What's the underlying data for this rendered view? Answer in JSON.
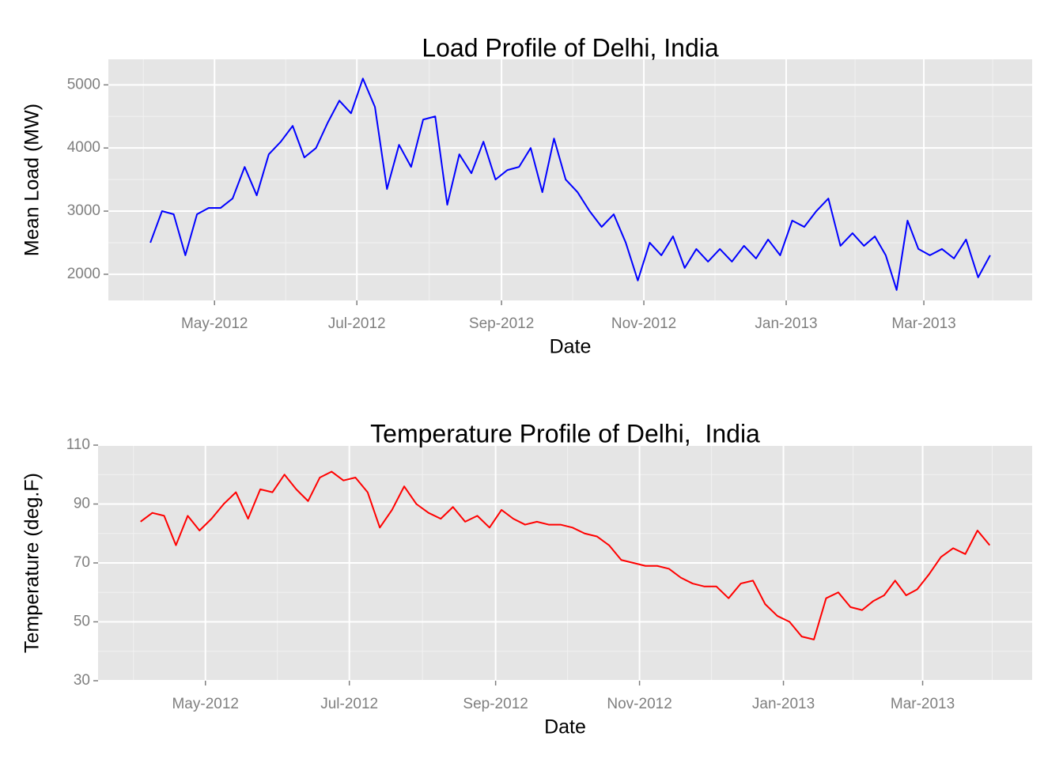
{
  "chart_data": [
    {
      "type": "line",
      "title": "Load Profile of Delhi, India",
      "x_label": "Date",
      "y_label": "Mean Load (MW)",
      "x": [
        "Apr-2012",
        "Apr-2012",
        "Apr-2012",
        "Apr-2012",
        "Apr-2012",
        "Apr-2012",
        "May-2012",
        "May-2012",
        "May-2012",
        "May-2012",
        "May-2012",
        "May-2012",
        "Jun-2012",
        "Jun-2012",
        "Jun-2012",
        "Jun-2012",
        "Jun-2012",
        "Jun-2012",
        "Jul-2012",
        "Jul-2012",
        "Jul-2012",
        "Jul-2012",
        "Jul-2012",
        "Jul-2012",
        "Aug-2012",
        "Aug-2012",
        "Aug-2012",
        "Aug-2012",
        "Aug-2012",
        "Aug-2012",
        "Sep-2012",
        "Sep-2012",
        "Sep-2012",
        "Sep-2012",
        "Sep-2012",
        "Sep-2012",
        "Oct-2012",
        "Oct-2012",
        "Oct-2012",
        "Oct-2012",
        "Oct-2012",
        "Oct-2012",
        "Nov-2012",
        "Nov-2012",
        "Nov-2012",
        "Nov-2012",
        "Nov-2012",
        "Nov-2012",
        "Dec-2012",
        "Dec-2012",
        "Dec-2012",
        "Dec-2012",
        "Dec-2012",
        "Dec-2012",
        "Jan-2013",
        "Jan-2013",
        "Jan-2013",
        "Jan-2013",
        "Jan-2013",
        "Jan-2013",
        "Feb-2013",
        "Feb-2013",
        "Feb-2013",
        "Feb-2013",
        "Feb-2013",
        "Feb-2013",
        "Mar-2013",
        "Mar-2013",
        "Mar-2013",
        "Mar-2013",
        "Mar-2013",
        "Mar-2013"
      ],
      "series": [
        {
          "color": "#0000ff",
          "values": [
            2500,
            3000,
            2950,
            2300,
            2950,
            3050,
            3050,
            3200,
            3700,
            3250,
            3900,
            4100,
            4350,
            3850,
            4000,
            4400,
            4750,
            4550,
            5100,
            4650,
            3350,
            4050,
            3700,
            4450,
            4500,
            3100,
            3900,
            3600,
            4100,
            3500,
            3650,
            3700,
            4000,
            3300,
            4150,
            3500,
            3300,
            3000,
            2750,
            2950,
            2500,
            1900,
            2500,
            2300,
            2600,
            2100,
            2400,
            2200,
            2400,
            2200,
            2450,
            2250,
            2550,
            2300,
            2850,
            2750,
            3000,
            3200,
            2450,
            2650,
            2450,
            2600,
            2300,
            1750,
            2850,
            2400,
            2300,
            2400,
            2250,
            2550,
            1950,
            2300
          ]
        }
      ],
      "xticks": [
        "May-2012",
        "Jul-2012",
        "Sep-2012",
        "Nov-2012",
        "Jan-2013",
        "Mar-2013"
      ],
      "ylim": [
        1585,
        5405
      ],
      "yticks": [
        2000,
        3000,
        4000,
        5000
      ],
      "grid": true
    },
    {
      "type": "line",
      "title": "Temperature Profile of Delhi,  India",
      "x_label": "Date",
      "y_label": "Temperature (deg.F)",
      "x": [
        "Apr-2012",
        "Apr-2012",
        "Apr-2012",
        "Apr-2012",
        "Apr-2012",
        "Apr-2012",
        "May-2012",
        "May-2012",
        "May-2012",
        "May-2012",
        "May-2012",
        "May-2012",
        "Jun-2012",
        "Jun-2012",
        "Jun-2012",
        "Jun-2012",
        "Jun-2012",
        "Jun-2012",
        "Jul-2012",
        "Jul-2012",
        "Jul-2012",
        "Jul-2012",
        "Jul-2012",
        "Jul-2012",
        "Aug-2012",
        "Aug-2012",
        "Aug-2012",
        "Aug-2012",
        "Aug-2012",
        "Aug-2012",
        "Sep-2012",
        "Sep-2012",
        "Sep-2012",
        "Sep-2012",
        "Sep-2012",
        "Sep-2012",
        "Oct-2012",
        "Oct-2012",
        "Oct-2012",
        "Oct-2012",
        "Oct-2012",
        "Oct-2012",
        "Nov-2012",
        "Nov-2012",
        "Nov-2012",
        "Nov-2012",
        "Nov-2012",
        "Nov-2012",
        "Dec-2012",
        "Dec-2012",
        "Dec-2012",
        "Dec-2012",
        "Dec-2012",
        "Dec-2012",
        "Jan-2013",
        "Jan-2013",
        "Jan-2013",
        "Jan-2013",
        "Jan-2013",
        "Jan-2013",
        "Feb-2013",
        "Feb-2013",
        "Feb-2013",
        "Feb-2013",
        "Feb-2013",
        "Feb-2013",
        "Mar-2013",
        "Mar-2013",
        "Mar-2013",
        "Mar-2013",
        "Mar-2013",
        "Mar-2013"
      ],
      "series": [
        {
          "color": "#ff0000",
          "values": [
            84,
            87,
            86,
            76,
            86,
            81,
            85,
            90,
            94,
            85,
            95,
            94,
            100,
            95,
            91,
            99,
            101,
            98,
            99,
            94,
            82,
            88,
            96,
            90,
            87,
            85,
            89,
            84,
            86,
            82,
            88,
            85,
            83,
            84,
            83,
            83,
            82,
            80,
            79,
            76,
            71,
            70,
            69,
            69,
            68,
            65,
            63,
            62,
            62,
            58,
            63,
            64,
            56,
            52,
            50,
            45,
            44,
            58,
            60,
            55,
            54,
            57,
            59,
            64,
            59,
            61,
            66,
            72,
            75,
            73,
            81,
            76
          ]
        }
      ],
      "xticks": [
        "May-2012",
        "Jul-2012",
        "Sep-2012",
        "Nov-2012",
        "Jan-2013",
        "Mar-2013"
      ],
      "ylim": [
        30,
        110
      ],
      "yticks": [
        30,
        50,
        70,
        90,
        110
      ],
      "grid": true
    }
  ]
}
